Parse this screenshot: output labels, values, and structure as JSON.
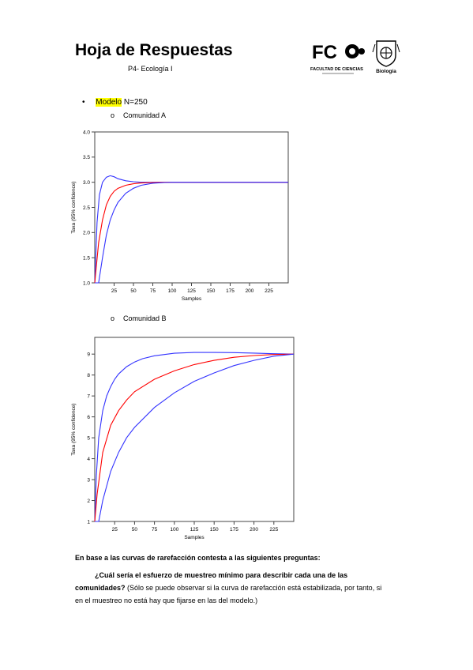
{
  "header": {
    "title": "Hoja de Respuestas",
    "subtitle": "P4- Ecología I",
    "logo_fc_text": "FC",
    "logo_fc_caption": "FACULTAD DE CIENCIAS",
    "logo_seal_caption": "Biología"
  },
  "model_line": {
    "highlighted": "Modelo",
    "rest": " N=250",
    "bullet": "•"
  },
  "community_a_label": "Comunidad A",
  "community_b_label": "Comunidad B",
  "sub_bullet": "o",
  "chart_data": [
    {
      "type": "line",
      "title": "",
      "xlabel": "Samples",
      "ylabel": "Taxa (95% confidence)",
      "xlim": [
        0,
        250
      ],
      "ylim": [
        1.0,
        4.0
      ],
      "x_ticks": [
        "25",
        "50",
        "75",
        "100",
        "125",
        "150",
        "175",
        "200",
        "225"
      ],
      "y_ticks": [
        "1.0",
        "1.5",
        "2.0",
        "2.5",
        "3.0",
        "3.5",
        "4.0"
      ],
      "series": [
        {
          "role": "upper",
          "color": "#3333ff",
          "x": [
            0,
            3,
            6,
            10,
            15,
            20,
            25,
            30,
            40,
            50,
            60,
            75,
            100,
            150,
            200,
            250
          ],
          "y": [
            1.0,
            2.2,
            2.75,
            3.0,
            3.1,
            3.13,
            3.11,
            3.07,
            3.03,
            3.01,
            3.0,
            3.0,
            3.0,
            3.0,
            3.0,
            3.0
          ]
        },
        {
          "role": "mean",
          "color": "#ff0000",
          "x": [
            0,
            5,
            10,
            15,
            20,
            25,
            30,
            40,
            50,
            60,
            75,
            90,
            100,
            150,
            200,
            250
          ],
          "y": [
            1.0,
            1.8,
            2.25,
            2.55,
            2.72,
            2.82,
            2.88,
            2.94,
            2.97,
            2.985,
            2.995,
            3.0,
            3.0,
            3.0,
            3.0,
            3.0
          ]
        },
        {
          "role": "lower",
          "color": "#3333ff",
          "x": [
            0,
            5,
            10,
            15,
            20,
            25,
            30,
            40,
            50,
            60,
            75,
            90,
            100,
            150,
            200,
            250
          ],
          "y": [
            1.0,
            1.0,
            1.5,
            1.95,
            2.25,
            2.45,
            2.6,
            2.78,
            2.88,
            2.94,
            2.98,
            2.995,
            3.0,
            3.0,
            3.0,
            3.0
          ]
        }
      ]
    },
    {
      "type": "line",
      "title": "",
      "xlabel": "Samples",
      "ylabel": "Taxa (95% confidence)",
      "xlim": [
        0,
        250
      ],
      "ylim": [
        1,
        9.8
      ],
      "x_ticks": [
        "25",
        "50",
        "75",
        "100",
        "125",
        "150",
        "175",
        "200",
        "225"
      ],
      "y_ticks": [
        "1",
        "2",
        "3",
        "4",
        "5",
        "6",
        "7",
        "8",
        "9"
      ],
      "series": [
        {
          "role": "upper",
          "color": "#3333ff",
          "x": [
            0,
            2,
            5,
            10,
            15,
            20,
            25,
            30,
            40,
            50,
            60,
            75,
            100,
            125,
            150,
            175,
            200,
            225,
            250
          ],
          "y": [
            1,
            3.2,
            5.0,
            6.3,
            7.0,
            7.45,
            7.8,
            8.05,
            8.4,
            8.62,
            8.78,
            8.92,
            9.04,
            9.08,
            9.08,
            9.07,
            9.05,
            9.02,
            9.0
          ]
        },
        {
          "role": "mean",
          "color": "#ff0000",
          "x": [
            0,
            3,
            10,
            20,
            30,
            40,
            50,
            75,
            100,
            125,
            150,
            175,
            200,
            225,
            250
          ],
          "y": [
            1,
            2.3,
            4.3,
            5.6,
            6.3,
            6.8,
            7.2,
            7.8,
            8.2,
            8.5,
            8.7,
            8.85,
            8.93,
            8.98,
            9.0
          ]
        },
        {
          "role": "lower",
          "color": "#3333ff",
          "x": [
            0,
            5,
            10,
            20,
            30,
            40,
            50,
            75,
            100,
            125,
            150,
            175,
            200,
            225,
            250
          ],
          "y": [
            1,
            1,
            2.0,
            3.4,
            4.3,
            5.0,
            5.5,
            6.45,
            7.15,
            7.7,
            8.1,
            8.45,
            8.7,
            8.9,
            9.0
          ]
        }
      ]
    }
  ],
  "intro_text": "En base a las curvas de rarefacción contesta a las siguientes preguntas:",
  "question": {
    "bold_line1": "¿Cuál sería el esfuerzo de muestreo mínimo para describir cada una de las",
    "bold_line2": "comunidades?",
    "normal_line2": " (Sólo se puede observar si la curva de rarefacción está estabilizada, por tanto, si",
    "normal_line3": "en el muestreo no está hay que fijarse en las del modelo.)"
  }
}
